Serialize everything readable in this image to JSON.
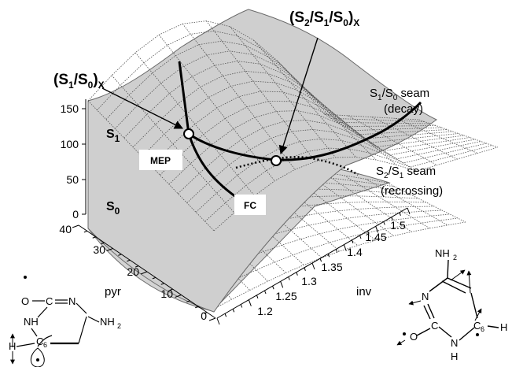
{
  "annotations": {
    "conical_s1s0": {
      "open": "(S",
      "s1": "1",
      "slash": "/S",
      "s0": "0",
      "close": ")",
      "x": "X"
    },
    "conical_s2s1s0": {
      "open": "(S",
      "s2": "2",
      "slash1": "/S",
      "s1": "1",
      "slash2": "/S",
      "s0": "0",
      "close": ")",
      "x": "X"
    },
    "seam_s1s0": {
      "s": "S",
      "one": "1",
      "slash": "/S",
      "zero": "0",
      "rest": " seam",
      "sub": "(decay)"
    },
    "seam_s2s1": {
      "s": "S",
      "two": "2",
      "slash": "/S",
      "one": "1",
      "rest": " seam",
      "sub": "(recrossing)"
    },
    "surface_s1": {
      "s": "S",
      "sub": "1"
    },
    "surface_s0": {
      "s": "S",
      "sub": "0"
    },
    "mep_box": "MEP",
    "fc_box": "FC"
  },
  "axes": {
    "energy_ticks": [
      "150",
      "100",
      "50",
      "0"
    ],
    "pyr_label": "pyr",
    "pyr_ticks": [
      "40",
      "30",
      "20",
      "10",
      "0"
    ],
    "inv_label": "inv",
    "inv_ticks": [
      "1.2",
      "1.25",
      "1.3",
      "1.35",
      "1.4",
      "1.45",
      "1.5"
    ]
  },
  "molecules": {
    "left": {
      "o": "O",
      "c": "C",
      "n_ring": "N",
      "nh": "NH",
      "nh2": "NH",
      "nh2_sub": "2",
      "c6": "C",
      "c6_sub": "6",
      "h": "H"
    },
    "right": {
      "nh2": "NH",
      "nh2_sub": "2",
      "n": "N",
      "c": "C",
      "o": "O",
      "n_bottom": "N",
      "h_bottom": "H",
      "c6": "C",
      "c6_sub": "6",
      "h": "H"
    }
  }
}
